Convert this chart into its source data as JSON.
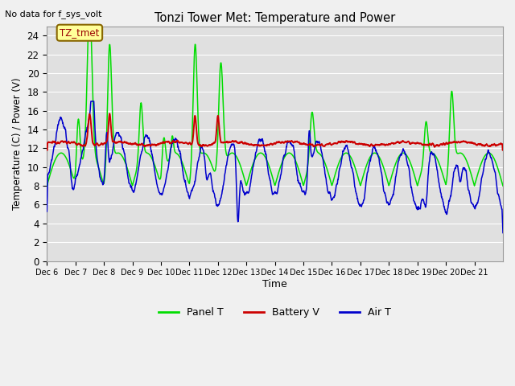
{
  "title": "Tonzi Tower Met: Temperature and Power",
  "top_left_text": "No data for f_sys_volt",
  "xlabel": "Time",
  "ylabel": "Temperature (C) / Power (V)",
  "ylim": [
    0,
    25
  ],
  "yticks": [
    0,
    2,
    4,
    6,
    8,
    10,
    12,
    14,
    16,
    18,
    20,
    22,
    24
  ],
  "xtick_labels": [
    "Dec 6",
    "Dec 7",
    "Dec 8",
    "Dec 9",
    "Dec 10",
    "Dec 11",
    "Dec 12",
    "Dec 13",
    "Dec 14",
    "Dec 15",
    "Dec 16",
    "Dec 17",
    "Dec 18",
    "Dec 19",
    "Dec 20",
    "Dec 21"
  ],
  "annotation_text": "TZ_tmet",
  "panel_color": "#00dd00",
  "battery_color": "#cc0000",
  "air_color": "#0000cc",
  "bg_color": "#e0e0e0",
  "fig_bg": "#f0f0f0",
  "grid_color": "#ffffff",
  "legend_labels": [
    "Panel T",
    "Battery V",
    "Air T"
  ]
}
